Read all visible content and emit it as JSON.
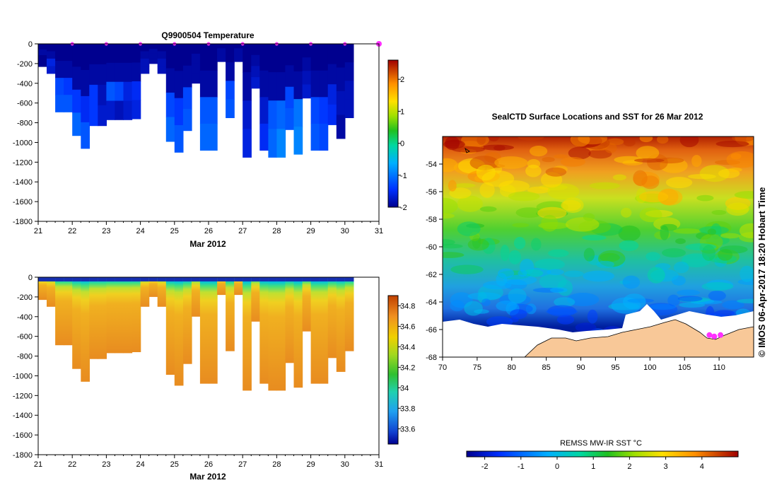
{
  "chart_data": [
    {
      "type": "heatmap",
      "id": "temperature",
      "title": "Q9900504  Temperature",
      "xlabel": "Mar 2012",
      "ylabel": "",
      "x_ticks": [
        "21",
        "22",
        "23",
        "24",
        "25",
        "26",
        "27",
        "28",
        "29",
        "30",
        "31"
      ],
      "xlim": [
        21,
        31
      ],
      "y_ticks": [
        "0",
        "-200",
        "-400",
        "-600",
        "-800",
        "-1000",
        "-1200",
        "-1400",
        "-1600",
        "-1800"
      ],
      "ylim": [
        -1800,
        0
      ],
      "colorbar": {
        "range": [
          -2,
          2.6
        ],
        "ticks": [
          "2",
          "1",
          "0",
          "-1",
          "-2"
        ],
        "tick_values": [
          2,
          1,
          0,
          -1,
          -2
        ]
      },
      "surface_markers_x": [
        22,
        23,
        24,
        25,
        26,
        27,
        28,
        29,
        30,
        31
      ],
      "profiles": [
        {
          "x": 21.0,
          "depth": 230,
          "values": [
            -2,
            -1.9,
            -2,
            -2.1
          ]
        },
        {
          "x": 21.25,
          "depth": 300,
          "values": [
            -2,
            -1.9,
            -1.6,
            -1.7
          ]
        },
        {
          "x": 21.5,
          "depth": 690,
          "values": [
            -2,
            -1.9,
            -1.3,
            -1.2
          ]
        },
        {
          "x": 21.75,
          "depth": 690,
          "values": [
            -2,
            -1.9,
            -1.4,
            -1.2
          ]
        },
        {
          "x": 22.0,
          "depth": 930,
          "values": [
            -2,
            -1.9,
            -1.4,
            -1.1
          ]
        },
        {
          "x": 22.25,
          "depth": 1060,
          "values": [
            -2,
            -1.9,
            -1.5,
            -1.2
          ]
        },
        {
          "x": 22.5,
          "depth": 830,
          "values": [
            -2,
            -1.9,
            -1.4,
            -1.4
          ]
        },
        {
          "x": 22.75,
          "depth": 830,
          "values": [
            -2,
            -1.9,
            -1.8,
            -1.7
          ]
        },
        {
          "x": 23.0,
          "depth": 770,
          "values": [
            -2,
            -1.9,
            -1.2,
            -1.7
          ]
        },
        {
          "x": 23.25,
          "depth": 770,
          "values": [
            -2,
            -1.9,
            -1.3,
            -1.8
          ]
        },
        {
          "x": 23.5,
          "depth": 770,
          "values": [
            -2,
            -1.9,
            -1.6,
            -1.7
          ]
        },
        {
          "x": 23.75,
          "depth": 760,
          "values": [
            -2,
            -1.9,
            -1.5,
            -1.6
          ]
        },
        {
          "x": 24.0,
          "depth": 300,
          "values": [
            -2,
            -1.9,
            -1.8,
            -1.8
          ]
        },
        {
          "x": 24.25,
          "depth": 200,
          "values": [
            -2,
            -1.9,
            -1.9,
            -1.9
          ]
        },
        {
          "x": 24.5,
          "depth": 300,
          "values": [
            -2,
            -1.9,
            -1.8,
            -1.8
          ]
        },
        {
          "x": 24.75,
          "depth": 990,
          "values": [
            -2,
            -1.9,
            -1.3,
            -1.1
          ]
        },
        {
          "x": 25.0,
          "depth": 1100,
          "values": [
            -2,
            -1.9,
            -1.4,
            -1.2
          ]
        },
        {
          "x": 25.25,
          "depth": 880,
          "values": [
            -2,
            -1.9,
            -1.3,
            -1.2
          ]
        },
        {
          "x": 25.5,
          "depth": 400,
          "values": [
            -2,
            -1.9,
            -1.9,
            -1.9
          ]
        },
        {
          "x": 25.75,
          "depth": 1080,
          "values": [
            -2,
            -1.9,
            -1.2,
            -1.1
          ]
        },
        {
          "x": 26.0,
          "depth": 1080,
          "values": [
            -2,
            -1.9,
            -1.2,
            -1.1
          ]
        },
        {
          "x": 26.25,
          "depth": 180,
          "values": [
            -2,
            -1.9,
            -1.9,
            -1.9
          ]
        },
        {
          "x": 26.5,
          "depth": 750,
          "values": [
            -2,
            -1.9,
            -1.3,
            -1.2
          ]
        },
        {
          "x": 26.75,
          "depth": 180,
          "values": [
            -2,
            -1.9,
            -1.9,
            -1.9
          ]
        },
        {
          "x": 27.0,
          "depth": 1150,
          "values": [
            -2,
            -1.9,
            -1.7,
            -1.6
          ]
        },
        {
          "x": 27.25,
          "depth": 450,
          "values": [
            -2,
            -1.9,
            -1.8,
            -1.7
          ]
        },
        {
          "x": 27.5,
          "depth": 1080,
          "values": [
            -2,
            -1.9,
            -1.7,
            -1.5
          ]
        },
        {
          "x": 27.75,
          "depth": 1150,
          "values": [
            -2,
            -1.9,
            -1.2,
            -1.1
          ]
        },
        {
          "x": 28.0,
          "depth": 1150,
          "values": [
            -2,
            -1.9,
            -1.1,
            -0.9
          ]
        },
        {
          "x": 28.25,
          "depth": 870,
          "values": [
            -2,
            -1.9,
            -1.3,
            -1.2
          ]
        },
        {
          "x": 28.5,
          "depth": 1120,
          "values": [
            -2,
            -1.9,
            -1.0,
            -0.9
          ]
        },
        {
          "x": 28.75,
          "depth": 550,
          "values": [
            -2,
            -1.9,
            -1.8,
            -1.7
          ]
        },
        {
          "x": 29.0,
          "depth": 1080,
          "values": [
            -2,
            -1.9,
            -1.3,
            -1.2
          ]
        },
        {
          "x": 29.25,
          "depth": 1080,
          "values": [
            -2,
            -1.9,
            -1.4,
            -1.3
          ]
        },
        {
          "x": 29.5,
          "depth": 820,
          "values": [
            -2,
            -1.9,
            -1.6,
            -1.5
          ]
        },
        {
          "x": 29.75,
          "depth": 960,
          "values": [
            -2,
            -1.9,
            -1.8,
            -1.9
          ]
        },
        {
          "x": 30.0,
          "depth": 750,
          "values": [
            -2,
            -1.9,
            -1.8,
            -1.8
          ]
        }
      ]
    },
    {
      "type": "heatmap",
      "id": "salinity",
      "title": "",
      "xlabel": "Mar 2012",
      "ylabel": "",
      "x_ticks": [
        "21",
        "22",
        "23",
        "24",
        "25",
        "26",
        "27",
        "28",
        "29",
        "30",
        "31"
      ],
      "xlim": [
        21,
        31
      ],
      "y_ticks": [
        "0",
        "-200",
        "-400",
        "-600",
        "-800",
        "-1000",
        "-1200",
        "-1400",
        "-1600",
        "-1800"
      ],
      "ylim": [
        -1800,
        0
      ],
      "colorbar": {
        "range": [
          33.45,
          34.9
        ],
        "ticks": [
          "34.8",
          "34.6",
          "34.4",
          "34.2",
          "34",
          "33.8",
          "33.6"
        ],
        "tick_values": [
          34.8,
          34.6,
          34.4,
          34.2,
          34.0,
          33.8,
          33.6
        ]
      }
    },
    {
      "type": "heatmap",
      "id": "sst_map",
      "title": "SealCTD Surface Locations and SST for 26 Mar 2012",
      "xlabel": "",
      "ylabel": "",
      "x_ticks": [
        "70",
        "75",
        "80",
        "85",
        "90",
        "95",
        "100",
        "105",
        "110"
      ],
      "xlim": [
        70,
        115
      ],
      "y_ticks": [
        "-54",
        "-56",
        "-58",
        "-60",
        "-62",
        "-64",
        "-66",
        "-68"
      ],
      "ylim": [
        -68,
        -52
      ],
      "colorbar": {
        "label": "REMSS MW-IR SST °C",
        "range": [
          -2.5,
          5
        ],
        "ticks": [
          "-2",
          "-1",
          "0",
          "1",
          "2",
          "3",
          "4"
        ],
        "tick_values": [
          -2,
          -1,
          0,
          1,
          2,
          3,
          4
        ]
      },
      "seal_locations": [
        [
          108.6,
          -66.4
        ],
        [
          109.3,
          -66.5
        ],
        [
          110.2,
          -66.4
        ]
      ]
    }
  ],
  "watermark": "© IMOS 06-Apr-2017 18:20 Hobart Time"
}
